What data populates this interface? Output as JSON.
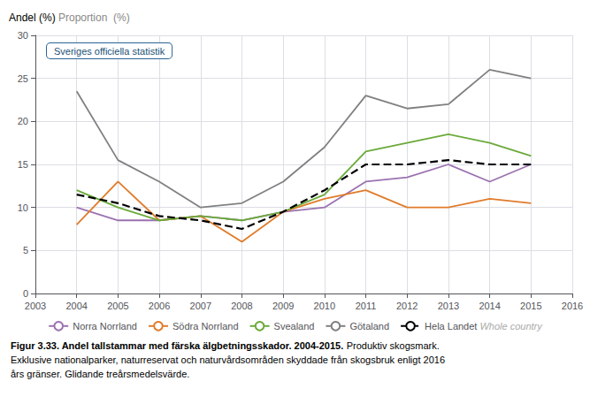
{
  "chart_data": {
    "type": "line",
    "ylabel": "Andel (%)",
    "x": [
      2004,
      2005,
      2006,
      2007,
      2008,
      2009,
      2010,
      2011,
      2012,
      2013,
      2014,
      2015
    ],
    "series": [
      {
        "name": "Norra Norrland",
        "color": "#9b72b0",
        "line_style": "solid",
        "values": [
          10.0,
          8.5,
          8.5,
          9.0,
          8.5,
          9.5,
          10.0,
          13.0,
          13.5,
          15.0,
          13.0,
          15.0
        ]
      },
      {
        "name": "Södra Norrland",
        "color": "#e07b2a",
        "line_style": "solid",
        "values": [
          8.0,
          13.0,
          8.5,
          9.0,
          6.0,
          9.5,
          11.0,
          12.0,
          10.0,
          10.0,
          11.0,
          10.5
        ]
      },
      {
        "name": "Svealand",
        "color": "#6aaa3a",
        "line_style": "solid",
        "values": [
          12.0,
          10.0,
          8.5,
          9.0,
          8.5,
          9.5,
          11.5,
          16.5,
          17.5,
          18.5,
          17.5,
          16.0
        ]
      },
      {
        "name": "Götaland",
        "color": "#808080",
        "line_style": "solid",
        "values": [
          23.5,
          15.5,
          13.0,
          10.0,
          10.5,
          13.0,
          17.0,
          23.0,
          21.5,
          22.0,
          26.0,
          25.0
        ]
      },
      {
        "name": "Hela Landet",
        "color": "#000000",
        "line_style": "dashed",
        "values": [
          11.5,
          10.5,
          9.0,
          8.5,
          7.5,
          9.5,
          12.0,
          15.0,
          15.0,
          15.5,
          15.0,
          15.0
        ]
      }
    ],
    "xlim": [
      2003,
      2016
    ],
    "xticks": [
      2003,
      2004,
      2005,
      2006,
      2007,
      2008,
      2009,
      2010,
      2011,
      2012,
      2013,
      2014,
      2015,
      2016
    ],
    "ylim": [
      0,
      30
    ],
    "yticks": [
      0,
      5,
      10,
      15,
      20,
      25,
      30
    ],
    "grid": true,
    "legend": "bottom",
    "marker": "none",
    "annotations": [
      "Proportion  (%)",
      "Whole country",
      "Sveriges officiella statistik"
    ],
    "caption": [
      "Figur 3.33. Andel tallstammar med färska älgbetningsskador. 2004-2015.",
      "Produktiv skogsmark.",
      "Exklusive nationalparker, naturreservat och naturvårdsområden skyddade från skogsbruk enligt 2016",
      "års gränser. Glidande treårsmedelsvärde."
    ]
  }
}
